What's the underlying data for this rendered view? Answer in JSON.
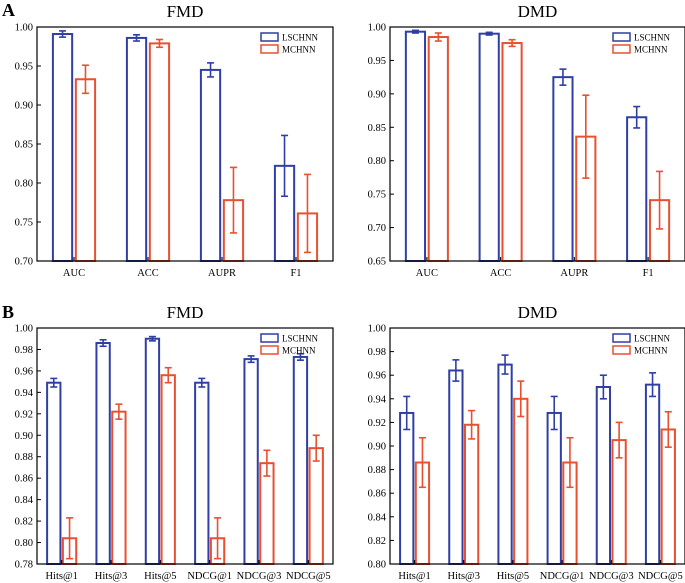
{
  "panel_labels": [
    "A",
    "B"
  ],
  "colors": {
    "LSCHNN": "#2f3fa6",
    "MCHNN": "#e8502f",
    "axis": "#000000"
  },
  "chart_data": [
    {
      "id": "A-FMD",
      "type": "bar",
      "panel": "A",
      "title": "FMD",
      "categories": [
        "AUC",
        "ACC",
        "AUPR",
        "F1"
      ],
      "series": [
        {
          "name": "LSCHNN",
          "values": [
            0.991,
            0.986,
            0.945,
            0.822
          ],
          "errors": [
            0.004,
            0.004,
            0.009,
            0.039
          ]
        },
        {
          "name": "MCHNN",
          "values": [
            0.933,
            0.979,
            0.778,
            0.761
          ],
          "errors": [
            0.018,
            0.005,
            0.042,
            0.05
          ]
        }
      ],
      "ylim": [
        0.7,
        1.0
      ],
      "yticks": [
        "0.70",
        "0.75",
        "0.80",
        "0.85",
        "0.90",
        "0.95",
        "1.00"
      ],
      "legend": [
        "LSCHNN",
        "MCHNN"
      ],
      "legend_position": "top-right"
    },
    {
      "id": "A-DMD",
      "type": "bar",
      "panel": "A",
      "title": "DMD",
      "categories": [
        "AUC",
        "ACC",
        "AUPR",
        "F1"
      ],
      "series": [
        {
          "name": "LSCHNN",
          "values": [
            0.993,
            0.99,
            0.925,
            0.865
          ],
          "errors": [
            0.002,
            0.002,
            0.012,
            0.016
          ]
        },
        {
          "name": "MCHNN",
          "values": [
            0.985,
            0.976,
            0.836,
            0.741
          ],
          "errors": [
            0.006,
            0.005,
            0.062,
            0.043
          ]
        }
      ],
      "ylim": [
        0.65,
        1.0
      ],
      "yticks": [
        "0.65",
        "0.70",
        "0.75",
        "0.80",
        "0.85",
        "0.90",
        "0.95",
        "1.00"
      ],
      "legend": [
        "LSCHNN",
        "MCHNN"
      ],
      "legend_position": "top-right"
    },
    {
      "id": "B-FMD",
      "type": "bar",
      "panel": "B",
      "title": "FMD",
      "categories": [
        "Hits@1",
        "Hits@3",
        "Hits@5",
        "NDCG@1",
        "NDCG@3",
        "NDCG@5"
      ],
      "series": [
        {
          "name": "LSCHNN",
          "values": [
            0.949,
            0.986,
            0.99,
            0.949,
            0.971,
            0.973
          ],
          "errors": [
            0.004,
            0.003,
            0.002,
            0.004,
            0.003,
            0.003
          ]
        },
        {
          "name": "MCHNN",
          "values": [
            0.804,
            0.922,
            0.956,
            0.804,
            0.874,
            0.888
          ],
          "errors": [
            0.019,
            0.007,
            0.007,
            0.019,
            0.012,
            0.012
          ]
        }
      ],
      "ylim": [
        0.78,
        1.0
      ],
      "yticks": [
        "0.78",
        "0.80",
        "0.82",
        "0.84",
        "0.86",
        "0.88",
        "0.90",
        "0.92",
        "0.94",
        "0.96",
        "0.98",
        "1.00"
      ],
      "legend": [
        "LSCHNN",
        "MCHNN"
      ],
      "legend_position": "top-right"
    },
    {
      "id": "B-DMD",
      "type": "bar",
      "panel": "B",
      "title": "DMD",
      "categories": [
        "Hits@1",
        "Hits@3",
        "Hits@5",
        "NDCG@1",
        "NDCG@3",
        "NDCG@5"
      ],
      "series": [
        {
          "name": "LSCHNN",
          "values": [
            0.928,
            0.964,
            0.969,
            0.928,
            0.95,
            0.952
          ],
          "errors": [
            0.014,
            0.009,
            0.008,
            0.014,
            0.01,
            0.01
          ]
        },
        {
          "name": "MCHNN",
          "values": [
            0.886,
            0.918,
            0.94,
            0.886,
            0.905,
            0.914
          ],
          "errors": [
            0.021,
            0.012,
            0.015,
            0.021,
            0.015,
            0.015
          ]
        }
      ],
      "ylim": [
        0.8,
        1.0
      ],
      "yticks": [
        "0.80",
        "0.82",
        "0.84",
        "0.86",
        "0.88",
        "0.90",
        "0.92",
        "0.94",
        "0.96",
        "0.98",
        "1.00"
      ],
      "legend": [
        "LSCHNN",
        "MCHNN"
      ],
      "legend_position": "top-right"
    }
  ]
}
